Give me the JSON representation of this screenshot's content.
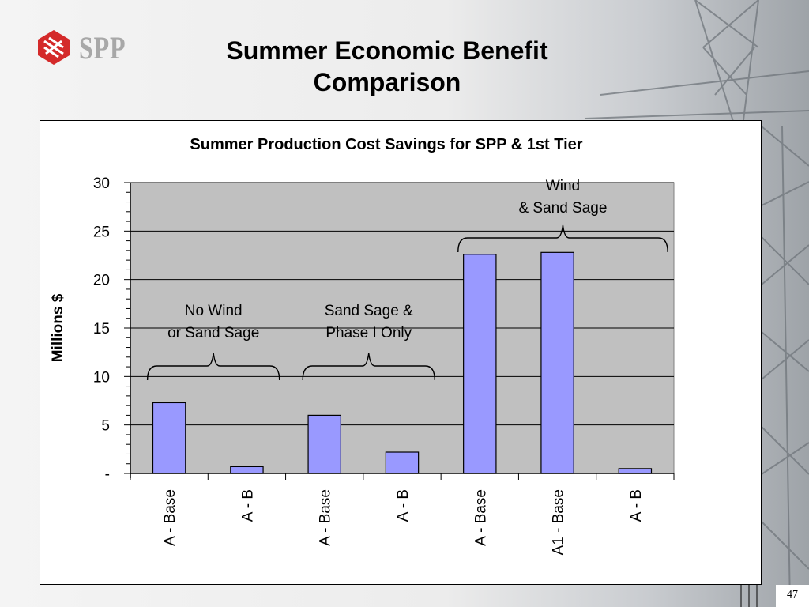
{
  "slide": {
    "logo_text": "SPP",
    "title_line1": "Summer Economic Benefit",
    "title_line2": "Comparison",
    "page_number": "47"
  },
  "chart_data": {
    "type": "bar",
    "title": "Summer Production Cost Savings for SPP & 1st Tier",
    "ylabel": "Millions $",
    "xlabel": "",
    "ylim": [
      0,
      30
    ],
    "yticks": [
      0,
      5,
      10,
      15,
      20,
      25,
      30
    ],
    "ytick_labels": [
      "-",
      "5",
      "10",
      "15",
      "20",
      "25",
      "30"
    ],
    "grid": true,
    "categories": [
      "A - Base",
      "A - B",
      "A - Base",
      "A - B",
      "A - Base",
      "A1 - Base",
      "A - B"
    ],
    "values": [
      7.3,
      0.7,
      6.0,
      2.2,
      22.6,
      22.8,
      0.5
    ],
    "bar_color": "#9999ff",
    "plot_bg": "#c0c0c0",
    "groups": [
      {
        "line1": "No Wind",
        "line2": "or Sand Sage",
        "start": 0,
        "end": 1
      },
      {
        "line1": "Sand Sage &",
        "line2": "Phase I Only",
        "start": 2,
        "end": 3
      },
      {
        "line1": "Wind",
        "line2": "& Sand Sage",
        "start": 4,
        "end": 6
      }
    ]
  }
}
